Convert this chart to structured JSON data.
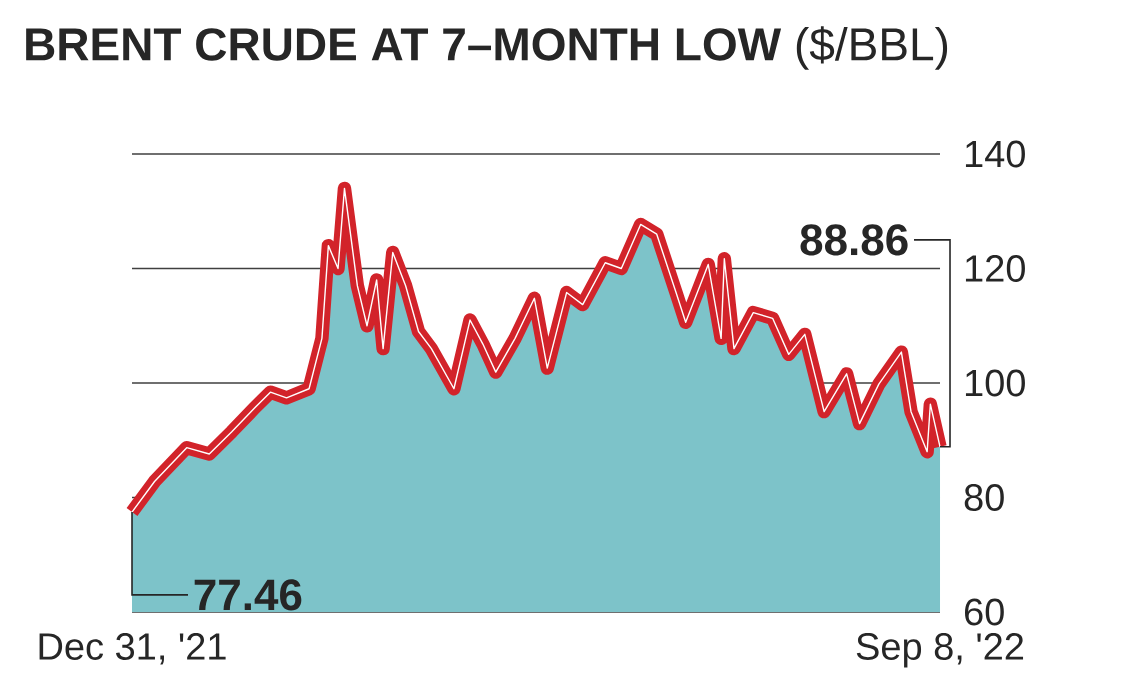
{
  "chart_data": {
    "type": "area",
    "title": "**BRENT CRUDE AT 7–MONTH LOW** ($/BBL)",
    "x": [
      "2021-12-31",
      "2022-01-07",
      "2022-01-17",
      "2022-01-24",
      "2022-01-31",
      "2022-02-07",
      "2022-02-12",
      "2022-02-17",
      "2022-02-24",
      "2022-02-28",
      "2022-03-02",
      "2022-03-05",
      "2022-03-07",
      "2022-03-11",
      "2022-03-14",
      "2022-03-17",
      "2022-03-19",
      "2022-03-22",
      "2022-03-26",
      "2022-03-30",
      "2022-04-03",
      "2022-04-10",
      "2022-04-15",
      "2022-04-19",
      "2022-04-23",
      "2022-04-29",
      "2022-05-05",
      "2022-05-09",
      "2022-05-15",
      "2022-05-20",
      "2022-05-27",
      "2022-06-01",
      "2022-06-07",
      "2022-06-12",
      "2022-06-18",
      "2022-06-21",
      "2022-06-28",
      "2022-07-02",
      "2022-07-03",
      "2022-07-06",
      "2022-07-12",
      "2022-07-18",
      "2022-07-23",
      "2022-07-28",
      "2022-08-03",
      "2022-08-10",
      "2022-08-14",
      "2022-08-20",
      "2022-08-27",
      "2022-08-30",
      "2022-09-04",
      "2022-09-05",
      "2022-09-08"
    ],
    "series": [
      {
        "color": "#7dc3c9",
        "values": [
          77.46,
          82.8,
          88.7,
          87.6,
          91.5,
          95.6,
          98.4,
          97.4,
          99,
          107.8,
          124,
          120,
          134,
          117,
          110,
          118,
          106,
          122.8,
          117,
          109,
          106,
          99,
          111,
          106.8,
          101.9,
          107.8,
          114.8,
          102.6,
          115.8,
          113.7,
          121,
          120,
          127.7,
          126,
          115.8,
          110.6,
          120.7,
          107.8,
          121.7,
          106,
          112.3,
          111.3,
          105,
          108.5,
          95,
          101.6,
          92.9,
          99.8,
          105.4,
          95,
          88,
          96.3,
          88.86
        ]
      },
      {
        "type": "line",
        "color": "#d2232a",
        "values": [
          77.46,
          82.8,
          88.7,
          87.6,
          91.5,
          95.6,
          98.4,
          97.4,
          99,
          107.8,
          124,
          120,
          134,
          117,
          110,
          118,
          106,
          122.8,
          117,
          109,
          106,
          99,
          111,
          106.8,
          101.9,
          107.8,
          114.8,
          102.6,
          115.8,
          113.7,
          121,
          120,
          127.7,
          126,
          115.8,
          110.6,
          120.7,
          107.8,
          121.7,
          106,
          112.3,
          111.3,
          105,
          108.5,
          95,
          101.6,
          92.9,
          99.8,
          105.4,
          95,
          88,
          96.3,
          88.86
        ]
      }
    ],
    "xlim": [
      "2021-12-31",
      "2022-09-08"
    ],
    "xticks": [
      {
        "value": "2021-12-31",
        "label": "Dec 31, '21"
      },
      {
        "value": "2022-09-08",
        "label": "Sep 8, '22"
      }
    ],
    "ylim": [
      60,
      140
    ],
    "yticks": [
      60,
      80,
      100,
      120,
      140
    ],
    "grid": "y",
    "annotations": [
      {
        "text": "77.46",
        "x": "2021-12-31",
        "y": 77.46
      },
      {
        "text": "88.86",
        "x": "2022-09-08",
        "y": 88.86
      }
    ]
  }
}
